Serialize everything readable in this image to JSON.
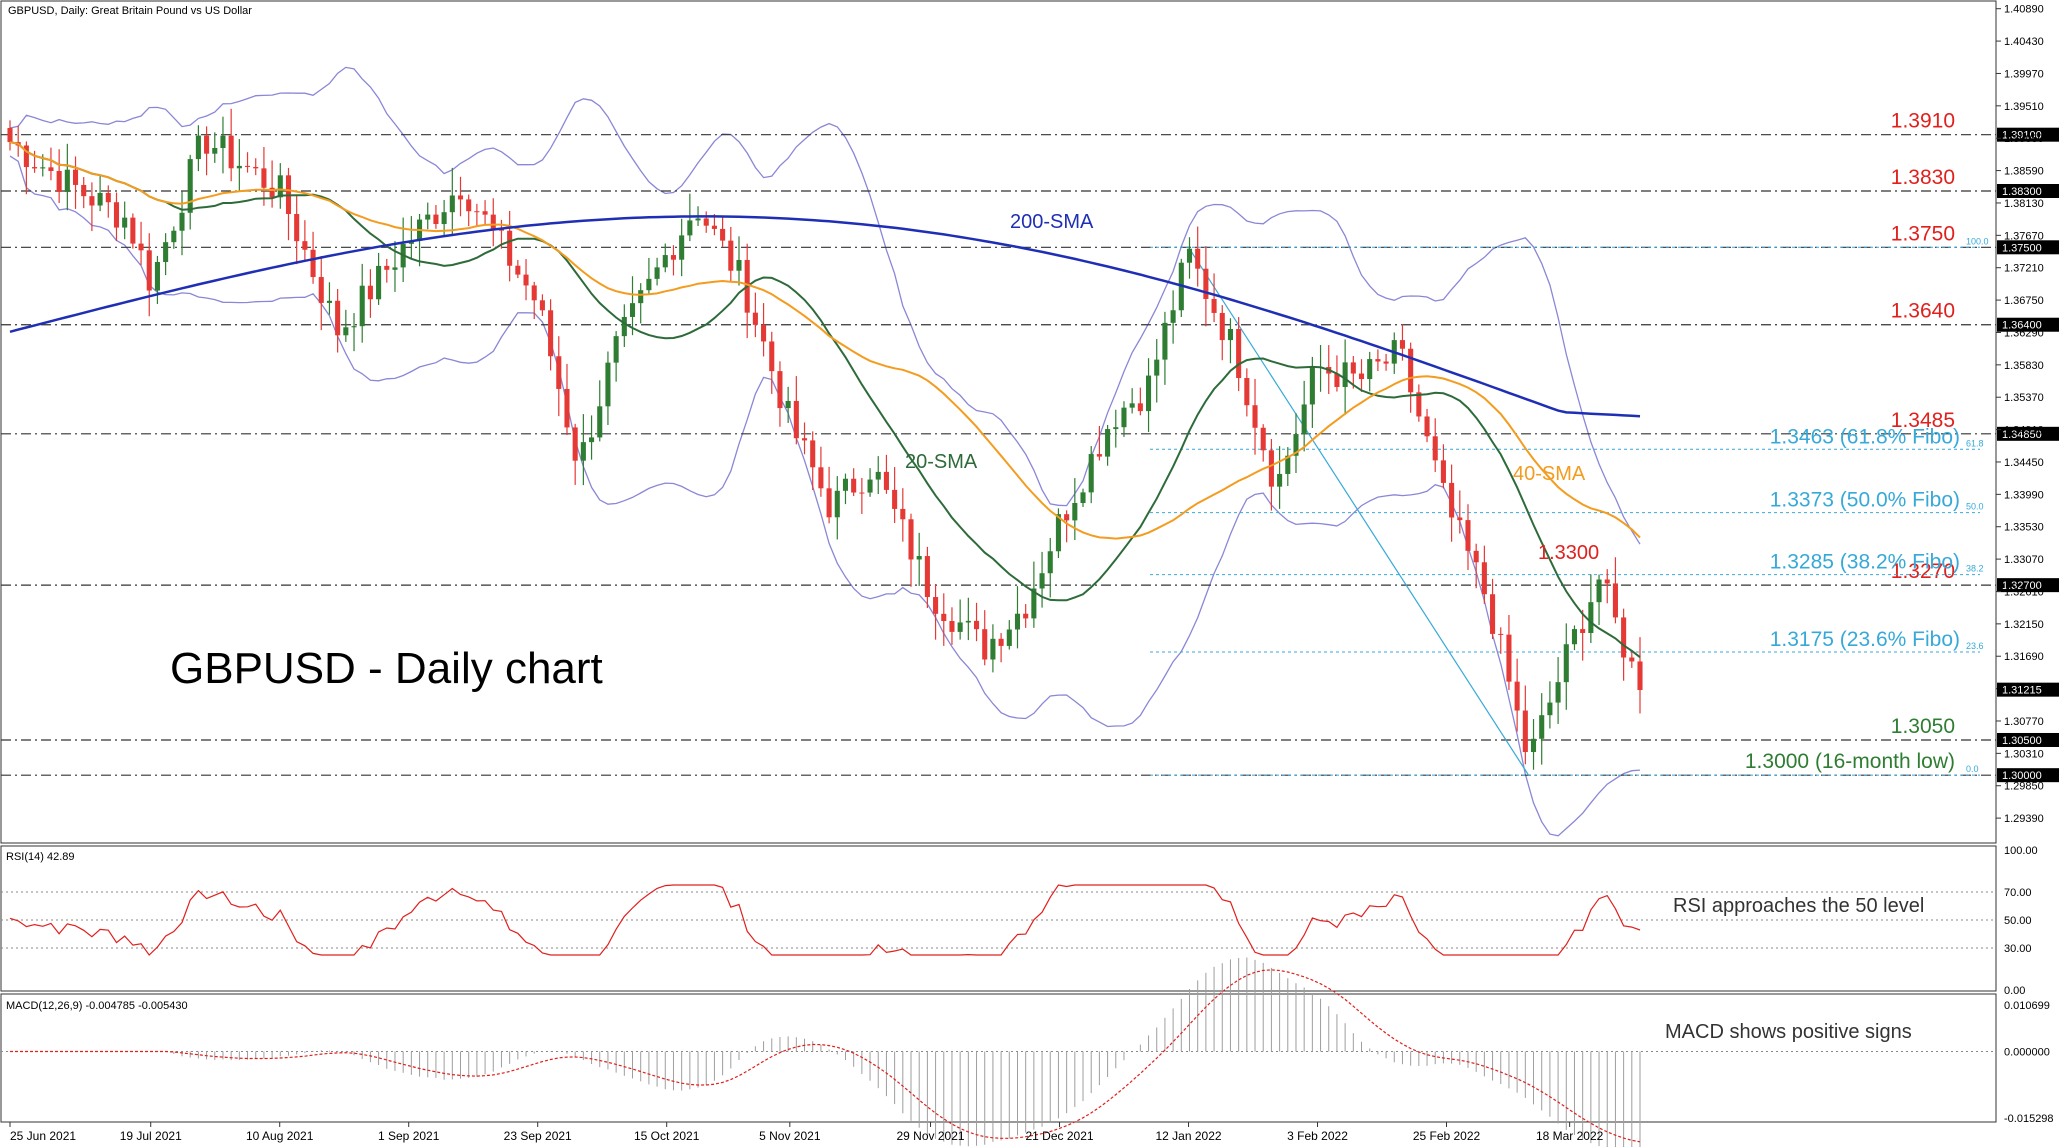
{
  "header": {
    "symbol_info": "GBPUSD, Daily:  Great Britain Pound vs US Dollar",
    "watermark": "GBPUSD - Daily chart"
  },
  "colors": {
    "bull": "#2e7d32",
    "bear": "#e53935",
    "sma20": "#2e6b3a",
    "sma40": "#f39c1f",
    "sma200": "#1f2fb5",
    "bollinger": "#8a87d6",
    "fibo": "#37a9d8",
    "support": "#2e7d32",
    "resistance": "#e0201d",
    "rsi": "#e0201d",
    "macd_hist": "#9e9e9e",
    "macd_signal": "#e0201d"
  },
  "price_axis": {
    "ticks": [
      "1.40890",
      "1.40430",
      "1.39970",
      "1.39510",
      "1.39050",
      "1.38590",
      "1.38130",
      "1.37670",
      "1.37210",
      "1.36750",
      "1.36290",
      "1.35830",
      "1.35370",
      "1.34910",
      "1.34450",
      "1.33990",
      "1.33530",
      "1.33070",
      "1.32610",
      "1.32150",
      "1.31690",
      "1.31230",
      "1.30770",
      "1.30310",
      "1.29850",
      "1.29390"
    ],
    "current_price": "1.31215"
  },
  "levels": [
    {
      "value": 1.391,
      "label": "1.3910",
      "tag": "1.39100",
      "color": "resistance"
    },
    {
      "value": 1.383,
      "label": "1.3830",
      "tag": "1.38300",
      "color": "resistance"
    },
    {
      "value": 1.375,
      "label": "1.3750",
      "tag": "1.37500",
      "color": "resistance"
    },
    {
      "value": 1.364,
      "label": "1.3640",
      "tag": "1.36400",
      "color": "resistance"
    },
    {
      "value": 1.3485,
      "label": "1.3485",
      "tag": "1.34850",
      "color": "resistance"
    },
    {
      "value": 1.327,
      "label": "1.3270",
      "tag": "1.32700",
      "color": "resistance"
    },
    {
      "value": 1.305,
      "label": "1.3050",
      "tag": "1.30500",
      "color": "support"
    },
    {
      "value": 1.3,
      "label": "1.3000 (16-month low)",
      "tag": "1.30000",
      "color": "support"
    }
  ],
  "fibo": [
    {
      "value": 1.375,
      "label": "",
      "pct": "100.0"
    },
    {
      "value": 1.3463,
      "label": "1.3463 (61.8% Fibo)",
      "pct": "61.8"
    },
    {
      "value": 1.3373,
      "label": "1.3373 (50.0% Fibo)",
      "pct": "50.0"
    },
    {
      "value": 1.3285,
      "label": "1.3285 (38.2% Fibo)",
      "pct": "38.2"
    },
    {
      "value": 1.3175,
      "label": "1.3175 (23.6% Fibo)",
      "pct": "23.6"
    },
    {
      "value": 1.3,
      "label": "",
      "pct": "0.0"
    }
  ],
  "annotations": {
    "sma200": "200-SMA",
    "sma20": "20-SMA",
    "sma40": "40-SMA",
    "peak": "1.3300",
    "rsi_note": "RSI approaches the 50 level",
    "macd_note": "MACD shows positive signs"
  },
  "rsi_panel": {
    "title": "RSI(14) 42.89",
    "ticks": [
      "100.00",
      "70.00",
      "50.00",
      "30.00",
      "0.00"
    ]
  },
  "macd_panel": {
    "title": "MACD(12,26,9) -0.004785 -0.005430",
    "ticks": [
      "0.010699",
      "0.000000",
      "-0.015298"
    ]
  },
  "time_axis": [
    "25 Jun 2021",
    "19 Jul 2021",
    "10 Aug 2021",
    "1 Sep 2021",
    "23 Sep 2021",
    "15 Oct 2021",
    "5 Nov 2021",
    "29 Nov 2021",
    "21 Dec 2021",
    "12 Jan 2022",
    "3 Feb 2022",
    "25 Feb 2022",
    "18 Mar 2022"
  ],
  "chart_data": {
    "type": "candlestick",
    "title": "GBPUSD - Daily chart",
    "ylim": [
      1.2915,
      1.409
    ],
    "close_series": [
      {
        "date": "25 Jun 2021",
        "close": 1.39
      },
      {
        "date": "5 Jul 2021",
        "close": 1.384
      },
      {
        "date": "15 Jul 2021",
        "close": 1.379
      },
      {
        "date": "19 Jul 2021",
        "close": 1.37
      },
      {
        "date": "28 Jul 2021",
        "close": 1.3905
      },
      {
        "date": "10 Aug 2021",
        "close": 1.383
      },
      {
        "date": "20 Aug 2021",
        "close": 1.363
      },
      {
        "date": "1 Sep 2021",
        "close": 1.376
      },
      {
        "date": "10 Sep 2021",
        "close": 1.384
      },
      {
        "date": "23 Sep 2021",
        "close": 1.367
      },
      {
        "date": "30 Sep 2021",
        "close": 1.344
      },
      {
        "date": "6 Oct 2021",
        "close": 1.36
      },
      {
        "date": "15 Oct 2021",
        "close": 1.374
      },
      {
        "date": "20 Oct 2021",
        "close": 1.381
      },
      {
        "date": "28 Oct 2021",
        "close": 1.37
      },
      {
        "date": "5 Nov 2021",
        "close": 1.35
      },
      {
        "date": "12 Nov 2021",
        "close": 1.338
      },
      {
        "date": "19 Nov 2021",
        "close": 1.344
      },
      {
        "date": "29 Nov 2021",
        "close": 1.326
      },
      {
        "date": "8 Dec 2021",
        "close": 1.318
      },
      {
        "date": "15 Dec 2021",
        "close": 1.324
      },
      {
        "date": "21 Dec 2021",
        "close": 1.336
      },
      {
        "date": "30 Dec 2021",
        "close": 1.351
      },
      {
        "date": "5 Jan 2022",
        "close": 1.355
      },
      {
        "date": "12 Jan 2022",
        "close": 1.374
      },
      {
        "date": "20 Jan 2022",
        "close": 1.36
      },
      {
        "date": "27 Jan 2022",
        "close": 1.341
      },
      {
        "date": "3 Feb 2022",
        "close": 1.358
      },
      {
        "date": "10 Feb 2022",
        "close": 1.356
      },
      {
        "date": "17 Feb 2022",
        "close": 1.36
      },
      {
        "date": "25 Feb 2022",
        "close": 1.338
      },
      {
        "date": "4 Mar 2022",
        "close": 1.325
      },
      {
        "date": "11 Mar 2022",
        "close": 1.302
      },
      {
        "date": "18 Mar 2022",
        "close": 1.318
      },
      {
        "date": "23 Mar 2022",
        "close": 1.328
      },
      {
        "date": "30 Mar 2022",
        "close": 1.3121
      }
    ],
    "indicators": [
      "20-SMA",
      "40-SMA",
      "200-SMA",
      "Bollinger Bands",
      "RSI(14)",
      "MACD(12,26,9)"
    ]
  }
}
